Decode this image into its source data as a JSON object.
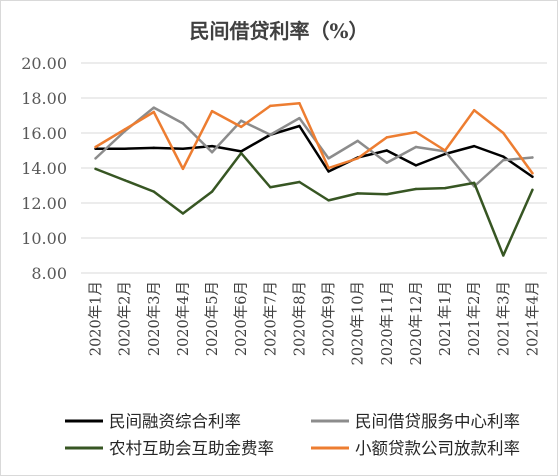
{
  "chart_data": {
    "type": "line",
    "title": "民间借贷利率（%）",
    "xlabel": "",
    "ylabel": "",
    "ylim": [
      8,
      20
    ],
    "yticks": [
      "8.00",
      "10.00",
      "12.00",
      "14.00",
      "16.00",
      "18.00",
      "20.00"
    ],
    "grid": true,
    "legend_position": "bottom",
    "categories": [
      "2020年1月",
      "2020年2月",
      "2020年3月",
      "2020年4月",
      "2020年5月",
      "2020年6月",
      "2020年7月",
      "2020年8月",
      "2020年9月",
      "2020年10月",
      "2020年11月",
      "2020年12月",
      "2021年1月",
      "2021年2月",
      "2021年3月",
      "2021年4月"
    ],
    "series": [
      {
        "name": "民间融资综合利率",
        "color": "#000000",
        "values": [
          15.1,
          15.1,
          15.15,
          15.1,
          15.25,
          14.95,
          15.9,
          16.4,
          13.8,
          14.6,
          15.0,
          14.15,
          14.8,
          15.25,
          14.65,
          13.5
        ]
      },
      {
        "name": "民间借贷服务中心利率",
        "color": "#8c8c8c",
        "values": [
          14.55,
          16.1,
          17.45,
          16.55,
          14.9,
          16.7,
          15.9,
          16.85,
          14.55,
          15.55,
          14.3,
          15.2,
          14.95,
          12.95,
          14.45,
          14.6
        ]
      },
      {
        "name": "农村互助会互助金费率",
        "color": "#375623",
        "values": [
          13.95,
          13.3,
          12.65,
          11.4,
          12.65,
          14.85,
          12.9,
          13.2,
          12.15,
          12.55,
          12.5,
          12.8,
          12.85,
          13.15,
          9.0,
          12.75
        ]
      },
      {
        "name": "小额贷款公司放款利率",
        "color": "#ed7d31",
        "values": [
          15.2,
          16.2,
          17.2,
          13.95,
          17.25,
          16.35,
          17.55,
          17.7,
          14.0,
          14.55,
          15.75,
          16.05,
          15.0,
          17.3,
          16.0,
          13.7
        ]
      }
    ]
  }
}
